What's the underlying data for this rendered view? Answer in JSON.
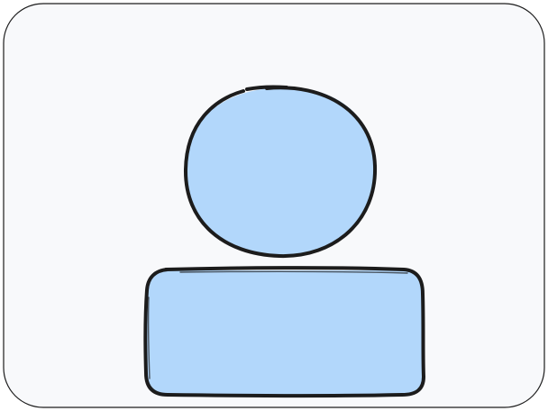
{
  "placeholder": {
    "icon": "avatar-placeholder-icon",
    "colors": {
      "frame_fill": "#f8f9fb",
      "frame_stroke": "#1c1c1c",
      "avatar_fill": "#b2d7fb",
      "avatar_stroke": "#1c1c1c"
    }
  }
}
